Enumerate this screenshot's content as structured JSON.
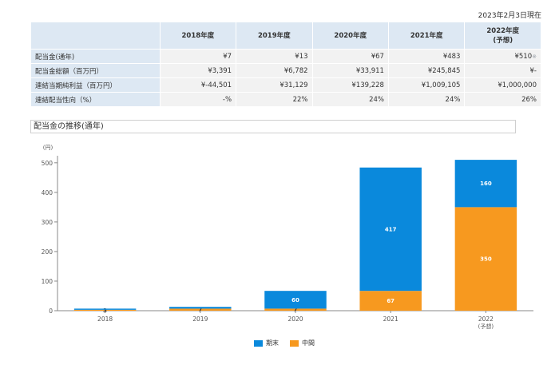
{
  "as_of": "2023年2月3日現在",
  "table": {
    "columns": [
      "2018年度",
      "2019年度",
      "2020年度",
      "2021年度",
      "2022年度",
      "(予想)"
    ],
    "rows": [
      {
        "label": "配当金(通年)",
        "values": [
          "¥7",
          "¥13",
          "¥67",
          "¥483",
          "¥510"
        ]
      },
      {
        "label": "配当金総額（百万円）",
        "values": [
          "¥3,391",
          "¥6,782",
          "¥33,911",
          "¥245,845",
          "¥-"
        ]
      },
      {
        "label": "連結当期純利益（百万円）",
        "values": [
          "¥-44,501",
          "¥31,129",
          "¥139,228",
          "¥1,009,105",
          "¥1,000,000"
        ]
      },
      {
        "label": "連結配当性向（%）",
        "values": [
          "-%",
          "22%",
          "24%",
          "24%",
          "26%"
        ]
      }
    ],
    "note_icon": "note-icon"
  },
  "section_title": "配当金の推移(通年)",
  "chart_data": {
    "type": "bar",
    "stacked": true,
    "y_unit": "(円)",
    "ylim": [
      0,
      540
    ],
    "yticks": [
      0,
      100,
      200,
      300,
      400,
      500
    ],
    "categories": [
      "2018",
      "2019",
      "2020",
      "2021",
      "2022"
    ],
    "category_sublabels": [
      "",
      "",
      "",
      "",
      "(予想)"
    ],
    "series": [
      {
        "name": "中間",
        "color": "#f7991f",
        "values": [
          3,
          7,
          7,
          67,
          350
        ],
        "labels": [
          "3",
          "7",
          "7",
          "67",
          "350"
        ]
      },
      {
        "name": "期末",
        "color": "#0a89dc",
        "values": [
          4,
          6,
          60,
          417,
          160
        ],
        "labels": [
          "",
          "",
          "60",
          "417",
          "160"
        ]
      }
    ],
    "legend_position": "bottom",
    "grid": false
  }
}
